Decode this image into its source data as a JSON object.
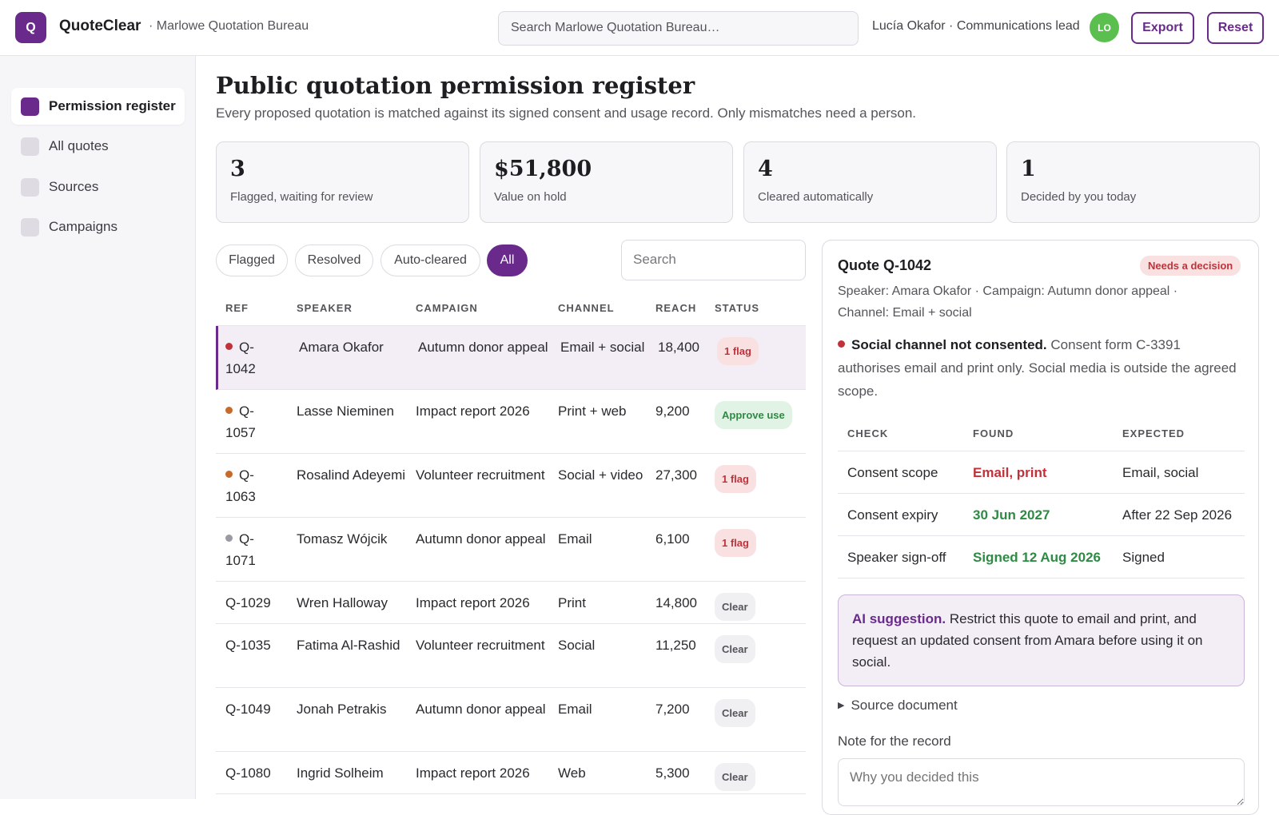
{
  "app": {
    "logo_letter": "Q",
    "name": "QuoteClear",
    "org": "· Marlowe Quotation Bureau",
    "search_placeholder": "Search Marlowe Quotation Bureau…",
    "user_label": "Lucía Okafor · Communications lead",
    "avatar_initials": "LO",
    "export_label": "Export",
    "reset_label": "Reset"
  },
  "sidebar": {
    "items": [
      {
        "label": "Permission register",
        "active": true
      },
      {
        "label": "All quotes",
        "active": false
      },
      {
        "label": "Sources",
        "active": false
      },
      {
        "label": "Campaigns",
        "active": false
      }
    ]
  },
  "page": {
    "title": "Public quotation permission register",
    "subtitle": "Every proposed quotation is matched against its signed consent and usage record. Only mismatches need a person."
  },
  "stats": [
    {
      "value": "3",
      "label": "Flagged, waiting for review"
    },
    {
      "value": "$51,800",
      "label": "Value on hold"
    },
    {
      "value": "4",
      "label": "Cleared automatically"
    },
    {
      "value": "1",
      "label": "Decided by you today"
    }
  ],
  "filters": {
    "pills": [
      "Flagged",
      "Resolved",
      "Auto-cleared",
      "All"
    ],
    "active": "All",
    "search_placeholder": "Search"
  },
  "table": {
    "headers": [
      "REF",
      "SPEAKER",
      "CAMPAIGN",
      "CHANNEL",
      "REACH",
      "STATUS"
    ],
    "rows": [
      {
        "ref_a": "Q-",
        "ref_b": "1042",
        "speaker": "Amara Okafor",
        "campaign": "Autumn donor appeal",
        "channel": "Email + social",
        "reach": "18,400",
        "status": "1 flag",
        "status_kind": "flag",
        "dot": "#c0323a",
        "selected": true
      },
      {
        "ref_a": "Q-",
        "ref_b": "1057",
        "speaker": "Lasse Nieminen",
        "campaign": "Impact report 2026",
        "channel": "Print + web",
        "reach": "9,200",
        "status": "Approve use",
        "status_kind": "approve",
        "dot": "#c86a2a",
        "selected": false
      },
      {
        "ref_a": "Q-",
        "ref_b": "1063",
        "speaker": "Rosalind Adeyemi",
        "campaign": "Volunteer recruitment",
        "channel": "Social + video",
        "reach": "27,300",
        "status": "1 flag",
        "status_kind": "flag",
        "dot": "#c86a2a",
        "selected": false
      },
      {
        "ref_a": "Q-",
        "ref_b": "1071",
        "speaker": "Tomasz Wójcik",
        "campaign": "Autumn donor appeal",
        "channel": "Email",
        "reach": "6,100",
        "status": "1 flag",
        "status_kind": "flag",
        "dot": "#9a99a4",
        "selected": false
      },
      {
        "ref_a": "Q-1029",
        "ref_b": "",
        "speaker": "Wren Halloway",
        "campaign": "Impact report 2026",
        "channel": "Print",
        "reach": "14,800",
        "status": "Clear",
        "status_kind": "clear",
        "dot": "",
        "selected": false
      },
      {
        "ref_a": "Q-1035",
        "ref_b": "",
        "speaker": "Fatima Al-Rashid",
        "campaign": "Volunteer recruitment",
        "channel": "Social",
        "reach": "11,250",
        "status": "Clear",
        "status_kind": "clear",
        "dot": "",
        "selected": false
      },
      {
        "ref_a": "Q-1049",
        "ref_b": "",
        "speaker": "Jonah Petrakis",
        "campaign": "Autumn donor appeal",
        "channel": "Email",
        "reach": "7,200",
        "status": "Clear",
        "status_kind": "clear",
        "dot": "",
        "selected": false
      },
      {
        "ref_a": "Q-1080",
        "ref_b": "",
        "speaker": "Ingrid Solheim",
        "campaign": "Impact report 2026",
        "channel": "Web",
        "reach": "5,300",
        "status": "Clear",
        "status_kind": "clear",
        "dot": "",
        "selected": false
      }
    ]
  },
  "detail": {
    "title": "Quote Q-1042",
    "badge": "Needs a decision",
    "meta": "Speaker: Amara Okafor · Campaign: Autumn donor appeal · Channel: Email + social",
    "issue_bold": "Social channel not consented.",
    "issue_text": " Consent form C-3391 authorises email and print only. Social media is outside the agreed scope.",
    "check_headers": [
      "CHECK",
      "FOUND",
      "EXPECTED"
    ],
    "checks": [
      {
        "check": "Consent scope",
        "found": "Email, print",
        "found_ok": false,
        "expected": "Email, social"
      },
      {
        "check": "Consent expiry",
        "found": "30 Jun 2027",
        "found_ok": true,
        "expected": "After 22 Sep 2026"
      },
      {
        "check": "Speaker sign-off",
        "found": "Signed 12 Aug 2026",
        "found_ok": true,
        "expected": "Signed"
      }
    ],
    "ai_bold": "AI suggestion.",
    "ai_text": " Restrict this quote to email and print, and request an updated consent from Amara before using it on social.",
    "source_doc": "Source document",
    "note_label": "Note for the record",
    "note_placeholder": "Why you decided this"
  },
  "colors": {
    "accent": "#6a2a8c",
    "flag": "#c0323a",
    "ok": "#2e8a44",
    "avatar": "#5bbf4f"
  }
}
